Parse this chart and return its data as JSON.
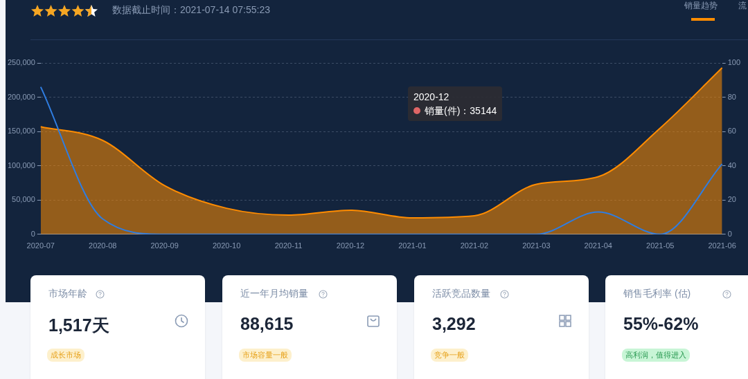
{
  "chart_data": [
    {
      "type": "area",
      "subtitle": "数据截止时间：2021-07-14 07:55:23",
      "categories": [
        "2020-07",
        "2020-08",
        "2020-09",
        "2020-10",
        "2020-11",
        "2020-12",
        "2021-01",
        "2021-02",
        "2021-03",
        "2021-04",
        "2021-05",
        "2021-06"
      ],
      "series": [
        {
          "type": "area",
          "color": "#ff8c00",
          "values": [
            157000,
            137000,
            71000,
            38000,
            28000,
            35144,
            24000,
            27000,
            73000,
            84000,
            155000,
            243000
          ]
        },
        {
          "type": "line",
          "axis": "y2",
          "color": "#2f7de1",
          "values": [
            86,
            9,
            0,
            0,
            0,
            0,
            0,
            0,
            0,
            13,
            0,
            41
          ]
        }
      ],
      "ylim": [
        0,
        250000
      ],
      "yticks": [
        0,
        {
          "value": 50000,
          "label": "50,000"
        },
        {
          "value": 100000,
          "label": "100,000"
        },
        {
          "value": 150000,
          "label": "150,000"
        },
        {
          "value": 200000,
          "label": "200,000"
        },
        {
          "value": 250000,
          "label": "250,000"
        }
      ],
      "y2lim": [
        0,
        100
      ],
      "y2ticks": [
        0,
        20,
        40,
        60,
        80,
        100
      ],
      "grid": "y",
      "legend": false,
      "marker": "none",
      "annotations": [
        "2020-12\n销量(件)：35144",
        "销量趋势",
        "流"
      ]
    },
    {
      "type": "other",
      "annotations": [
        "市场年龄",
        "1,517天",
        "成长市场",
        "近一年月均销量",
        "88,615",
        "市场容量一般",
        "活跃竞品数量",
        "3,292",
        "竞争一般",
        "销售毛利率 (估)",
        "55%-62%",
        "高利润，值得进入"
      ]
    }
  ]
}
